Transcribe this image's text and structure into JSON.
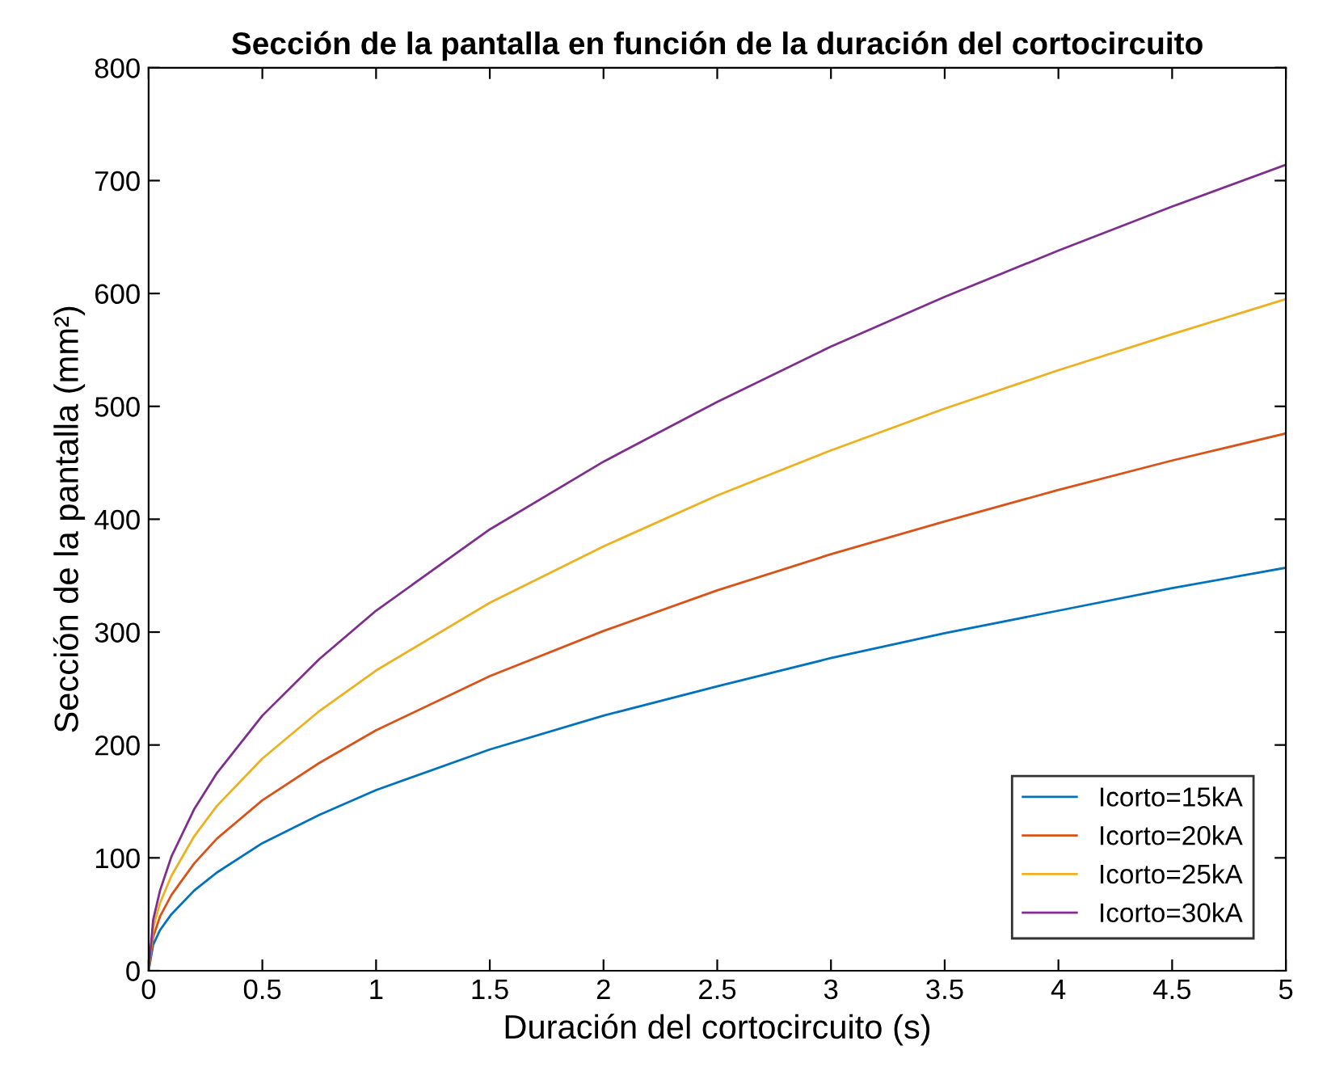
{
  "chart_data": {
    "type": "line",
    "title": "Sección de la pantalla en función de la duración del cortocircuito",
    "xlabel": "Duración del cortocircuito (s)",
    "ylabel": "Sección de la pantalla (mm²)",
    "x": [
      0,
      0.02,
      0.05,
      0.1,
      0.2,
      0.3,
      0.5,
      0.75,
      1,
      1.5,
      2,
      2.5,
      3,
      3.5,
      4,
      4.5,
      5
    ],
    "series": [
      {
        "name": "Icorto=15kA",
        "color": "#0072bd",
        "values": [
          0,
          23,
          36,
          50,
          71,
          87,
          113,
          138,
          160,
          196,
          226,
          252,
          277,
          299,
          319,
          339,
          357
        ]
      },
      {
        "name": "Icorto=20kA",
        "color": "#d95319",
        "values": [
          0,
          30,
          48,
          67,
          95,
          117,
          151,
          184,
          213,
          261,
          301,
          337,
          369,
          398,
          426,
          452,
          476
        ]
      },
      {
        "name": "Icorto=25kA",
        "color": "#edb120",
        "values": [
          0,
          38,
          60,
          84,
          119,
          146,
          188,
          230,
          266,
          326,
          376,
          421,
          461,
          498,
          532,
          564,
          595
        ]
      },
      {
        "name": "Icorto=30kA",
        "color": "#7e2f8e",
        "values": [
          0,
          45,
          71,
          101,
          143,
          175,
          226,
          276,
          319,
          391,
          451,
          504,
          553,
          597,
          638,
          677,
          714
        ]
      }
    ],
    "xlim": [
      0,
      5
    ],
    "xticks": [
      0,
      0.5,
      1,
      1.5,
      2,
      2.5,
      3,
      3.5,
      4,
      4.5,
      5
    ],
    "ylim": [
      0,
      800
    ],
    "yticks": [
      0,
      100,
      200,
      300,
      400,
      500,
      600,
      700,
      800
    ],
    "grid": false,
    "legend": "bottom right",
    "marker": "none",
    "line_style": "solid"
  }
}
